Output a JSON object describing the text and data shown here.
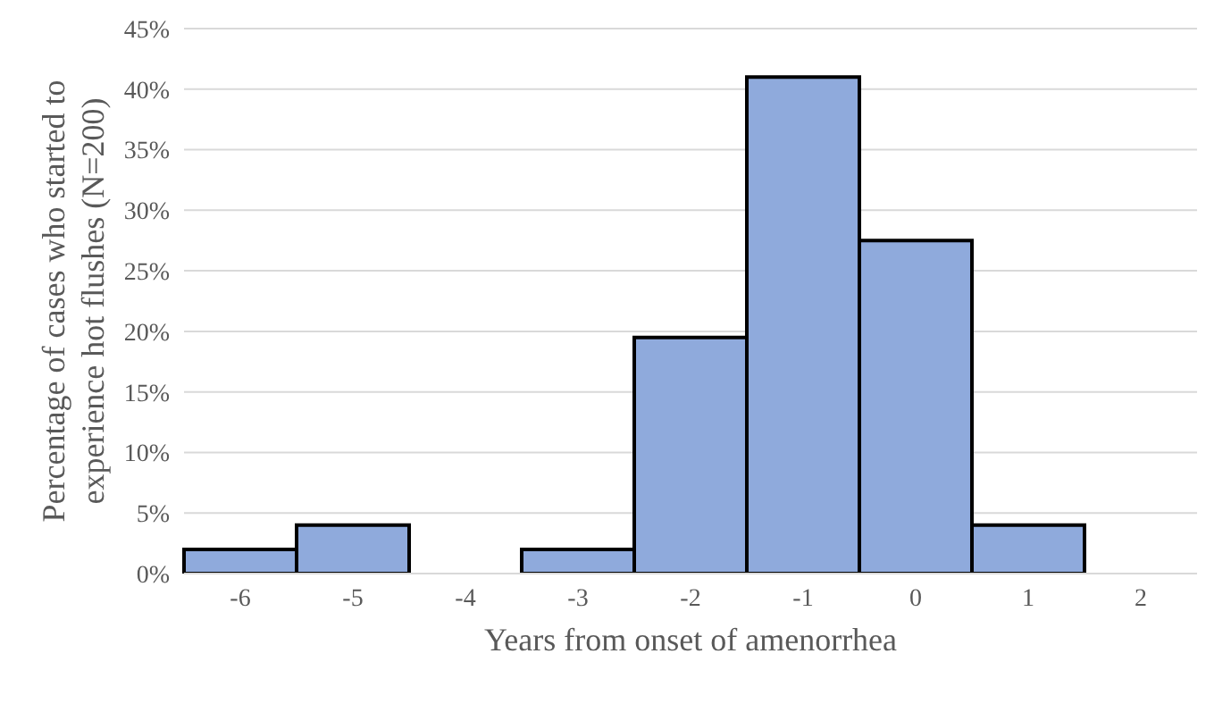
{
  "chart_data": {
    "type": "bar",
    "xlabel": "Years from onset of amenorrhea",
    "ylabel": "Percentage of cases who started to experience hot flushes (N=200)",
    "categories": [
      "-6",
      "-5",
      "-4",
      "-3",
      "-2",
      "-1",
      "0",
      "1",
      "2"
    ],
    "values": [
      2,
      4,
      0,
      2,
      19.5,
      41,
      27.5,
      4,
      0
    ],
    "color": "#8faadc",
    "ylim": [
      0,
      45
    ],
    "yticks": [
      {
        "value": 0,
        "label": "0%"
      },
      {
        "value": 5,
        "label": "5%"
      },
      {
        "value": 10,
        "label": "10%"
      },
      {
        "value": 15,
        "label": "15%"
      },
      {
        "value": 20,
        "label": "20%"
      },
      {
        "value": 25,
        "label": "25%"
      },
      {
        "value": 30,
        "label": "30%"
      },
      {
        "value": 35,
        "label": "35%"
      },
      {
        "value": 40,
        "label": "40%"
      },
      {
        "value": 45,
        "label": "45%"
      }
    ],
    "grid": "y"
  }
}
